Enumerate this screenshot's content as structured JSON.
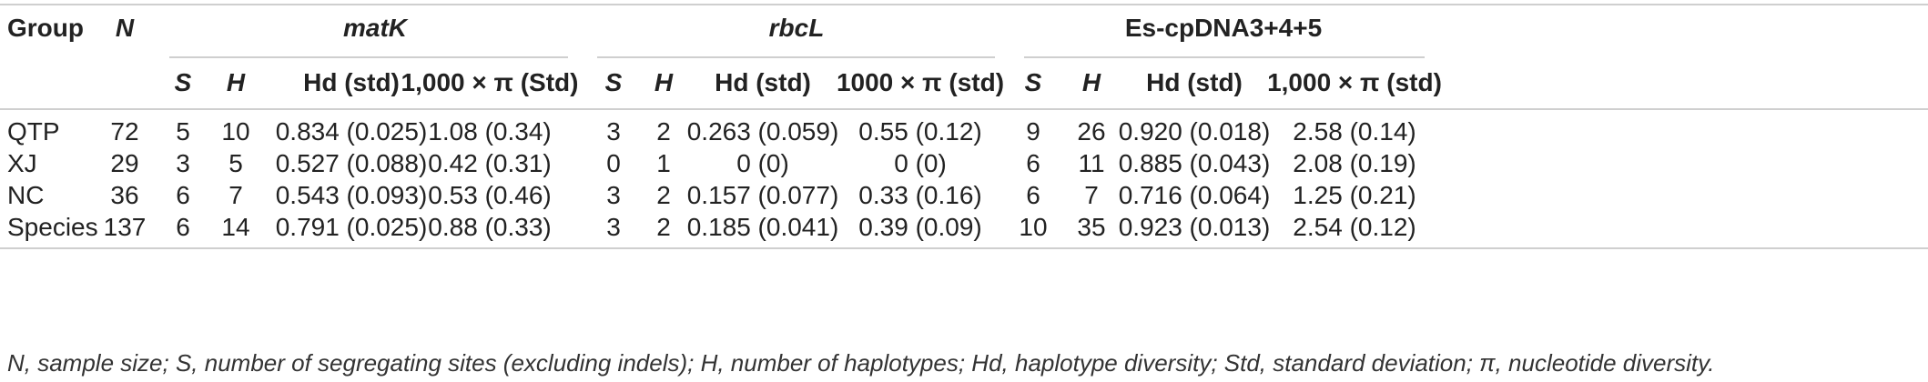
{
  "header": {
    "group": "Group",
    "n": "N",
    "groups": [
      "matK",
      "rbcL",
      "Es-cpDNA3+4+5"
    ],
    "sub": [
      [
        "S",
        "H",
        "Hd (std)",
        "1,000 × π (Std)"
      ],
      [
        "S",
        "H",
        "Hd (std)",
        "1000 × π (std)"
      ],
      [
        "S",
        "H",
        "Hd (std)",
        "1,000 × π (std)"
      ]
    ]
  },
  "rows": [
    [
      "QTP",
      "72",
      "5",
      "10",
      "0.834 (0.025)",
      "1.08 (0.34)",
      "3",
      "2",
      "0.263 (0.059)",
      "0.55 (0.12)",
      "9",
      "26",
      "0.920 (0.018)",
      "2.58 (0.14)"
    ],
    [
      "XJ",
      "29",
      "3",
      "5",
      "0.527 (0.088)",
      "0.42 (0.31)",
      "0",
      "1",
      "0 (0)",
      "0 (0)",
      "6",
      "11",
      "0.885 (0.043)",
      "2.08 (0.19)"
    ],
    [
      "NC",
      "36",
      "6",
      "7",
      "0.543 (0.093)",
      "0.53 (0.46)",
      "3",
      "2",
      "0.157 (0.077)",
      "0.33 (0.16)",
      "6",
      "7",
      "0.716 (0.064)",
      "1.25 (0.21)"
    ],
    [
      "Species",
      "137",
      "6",
      "14",
      "0.791 (0.025)",
      "0.88 (0.33)",
      "3",
      "2",
      "0.185 (0.041)",
      "0.39 (0.09)",
      "10",
      "35",
      "0.923 (0.013)",
      "2.54 (0.12)"
    ]
  ],
  "footnote": "N, sample size; S, number of segregating sites (excluding indels); H, number of haplotypes; Hd, haplotype diversity; Std, standard deviation; π, nucleotide diversity."
}
